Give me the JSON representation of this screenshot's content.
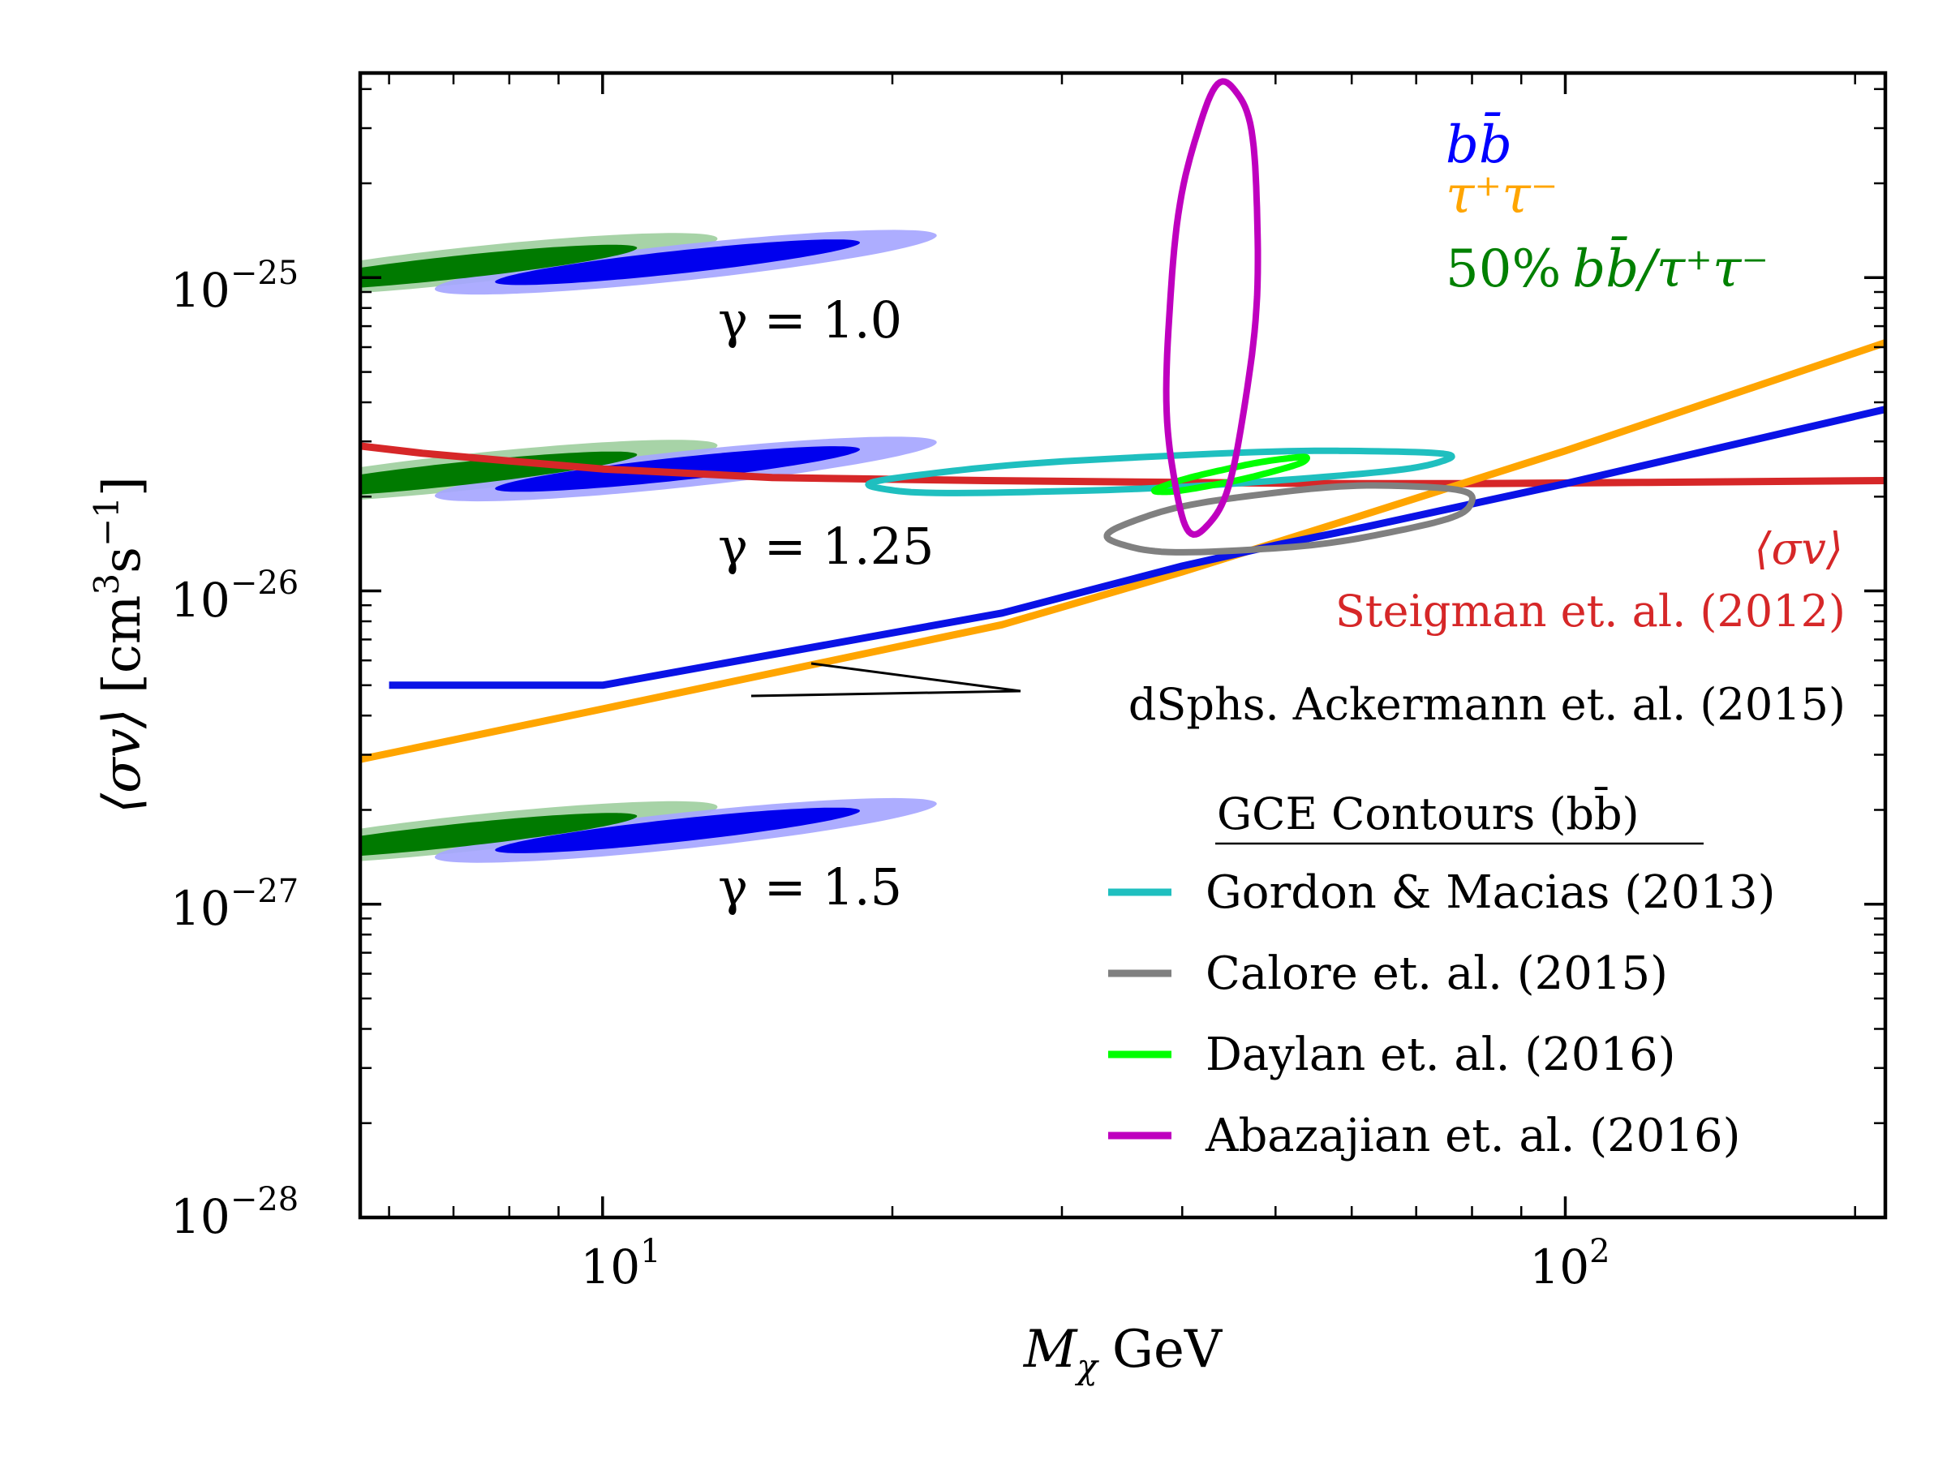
{
  "chart_data": {
    "type": "line",
    "x_scale": "log",
    "y_scale": "log",
    "xlim": [
      5.6,
      215
    ],
    "ylim": [
      1e-28,
      4.5e-25
    ],
    "x_ticks": [
      {
        "value": 10,
        "base": "10",
        "exp": "1"
      },
      {
        "value": 100,
        "base": "10",
        "exp": "2"
      }
    ],
    "y_ticks": [
      {
        "value": 1e-25,
        "base": "10",
        "exp": "−25"
      },
      {
        "value": 1e-26,
        "base": "10",
        "exp": "−26"
      },
      {
        "value": 1e-27,
        "base": "10",
        "exp": "−27"
      },
      {
        "value": 1e-28,
        "base": "10",
        "exp": "−28"
      }
    ],
    "xlabel": {
      "var": "M",
      "sub": "χ",
      "unit": "GeV"
    },
    "ylabel": {
      "sigma_v": "⟨σv⟩",
      "unit_open": "[cm",
      "cm_exp": "3",
      "s": "s",
      "s_exp": "−1",
      "unit_close": "]"
    },
    "series": [
      {
        "name": "Steigman et. al. (2012)",
        "color": "#d62728",
        "x": [
          5.6,
          6.5,
          8,
          10,
          15,
          25,
          40,
          60,
          80,
          120,
          215
        ],
        "y": [
          2.9e-26,
          2.75e-26,
          2.6e-26,
          2.45e-26,
          2.3e-26,
          2.25e-26,
          2.22e-26,
          2.2e-26,
          2.2e-26,
          2.22e-26,
          2.25e-26
        ]
      },
      {
        "name": "dSphs bb",
        "color": "#0a12e6",
        "x": [
          6,
          10,
          26,
          40,
          50,
          62,
          100,
          215
        ],
        "y": [
          5e-27,
          5e-27,
          8.5e-27,
          1.2e-26,
          1.4e-26,
          1.6e-26,
          2.2e-26,
          3.8e-26
        ]
      },
      {
        "name": "dSphs tautau",
        "color": "#ffa500",
        "x": [
          5.6,
          10,
          26,
          40,
          60,
          100,
          215
        ],
        "y": [
          2.9e-27,
          4.2e-27,
          7.8e-27,
          1.15e-26,
          1.7e-26,
          2.8e-26,
          6.2e-26
        ]
      }
    ],
    "contours": [
      {
        "name": "Gordon & Macias (2013)",
        "color": "#1fbfbf",
        "cx": 38,
        "cy": 2.4e-26,
        "a": 0.305,
        "b": 0.05,
        "angle": 0.15
      },
      {
        "name": "Calore et. al. (2015)",
        "color": "#808080",
        "cx": 52,
        "cy": 1.7e-26,
        "a": 0.2,
        "b": 0.085,
        "angle": 0.36
      },
      {
        "name": "Daylan et. al. (2016)",
        "color": "#00ff00",
        "cx": 45,
        "cy": 2.35e-26,
        "a": 0.095,
        "b": 0.018,
        "angle": 0.6
      },
      {
        "name": "Abazajian et. al. (2016)",
        "color": "#bf00bf",
        "cx": 43,
        "cy": 8e-26,
        "a": 0.72,
        "b": 0.045,
        "angle": 1.55
      }
    ],
    "regions": [
      {
        "group": "γ = 1.0",
        "green_cx": 7.3,
        "blue_cx": 12.2,
        "cy": 1.12e-25
      },
      {
        "group": "γ = 1.25",
        "green_cx": 7.3,
        "blue_cx": 12.2,
        "cy": 2.45e-26
      },
      {
        "group": "γ = 1.5",
        "green_cx": 7.3,
        "blue_cx": 12.2,
        "cy": 1.72e-27
      }
    ],
    "region_colors": {
      "green_dark": "#007a00",
      "green_light": "#a7d3a7",
      "blue_dark": "#0000ee",
      "blue_light": "#a6a6ff"
    },
    "gamma_labels": [
      "γ = 1.0",
      "γ = 1.25",
      "γ = 1.5"
    ],
    "channel_legend": {
      "bb": "bb̄",
      "tautau": "τ⁺τ⁻",
      "mix_prefix": "50%",
      "mix": "bb̄/τ⁺τ⁻",
      "colors": {
        "bb": "#0000ff",
        "tautau": "#ffa500",
        "mix": "#008000"
      }
    },
    "annotations": {
      "sigma_v": "⟨σv⟩",
      "steigman": "Steigman et. al. (2012)",
      "dsphs": "dSphs. Ackermann et. al. (2015)",
      "red_color": "#d62728"
    },
    "legend": {
      "title": "GCE Contours (bb̄)",
      "position": "lower-right",
      "entries": [
        {
          "label": "Gordon & Macias (2013)",
          "color": "#1fbfbf"
        },
        {
          "label": "Calore et. al. (2015)",
          "color": "#808080"
        },
        {
          "label": "Daylan et. al. (2016)",
          "color": "#00ff00"
        },
        {
          "label": "Abazajian et. al. (2016)",
          "color": "#bf00bf"
        }
      ]
    }
  }
}
